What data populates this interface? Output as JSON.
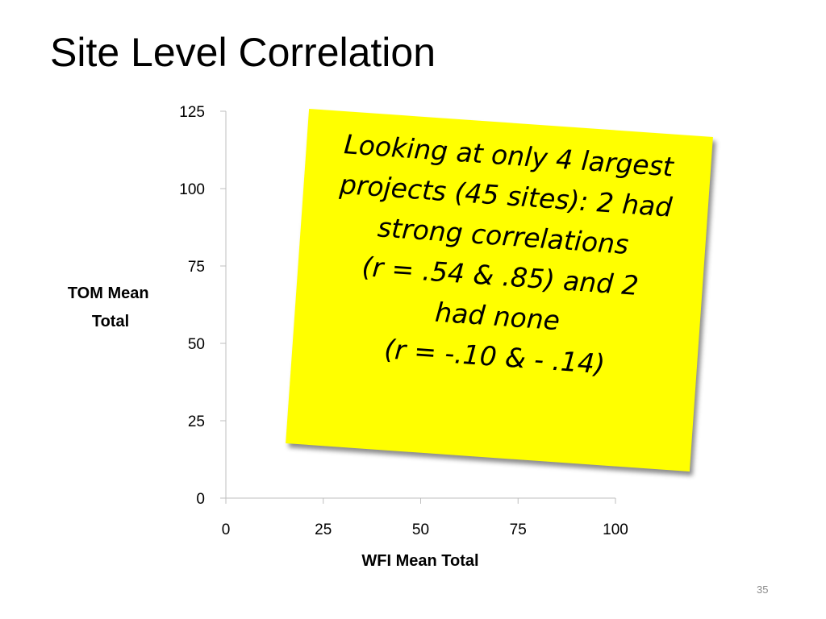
{
  "slide": {
    "title": "Site Level Correlation",
    "slide_number": "35"
  },
  "callout": {
    "lines": [
      "Looking at only 4 largest",
      "projects (45 sites): 2 had",
      "strong correlations",
      "(r = .54 & .85) and 2",
      "had none",
      "(r = -.10 & - .14)"
    ],
    "background_color": "#ffff00"
  },
  "chart_data": {
    "type": "scatter",
    "title": "",
    "xlabel": "WFI Mean Total",
    "ylabel": "TOM Mean Total",
    "xlim": [
      0,
      100
    ],
    "ylim": [
      0,
      125
    ],
    "x_ticks": [
      0,
      25,
      50,
      75,
      100
    ],
    "y_ticks": [
      0,
      25,
      50,
      75,
      100,
      125
    ],
    "grid": false,
    "legend": "none",
    "series": [],
    "axis_color": "#bfbfbf"
  }
}
